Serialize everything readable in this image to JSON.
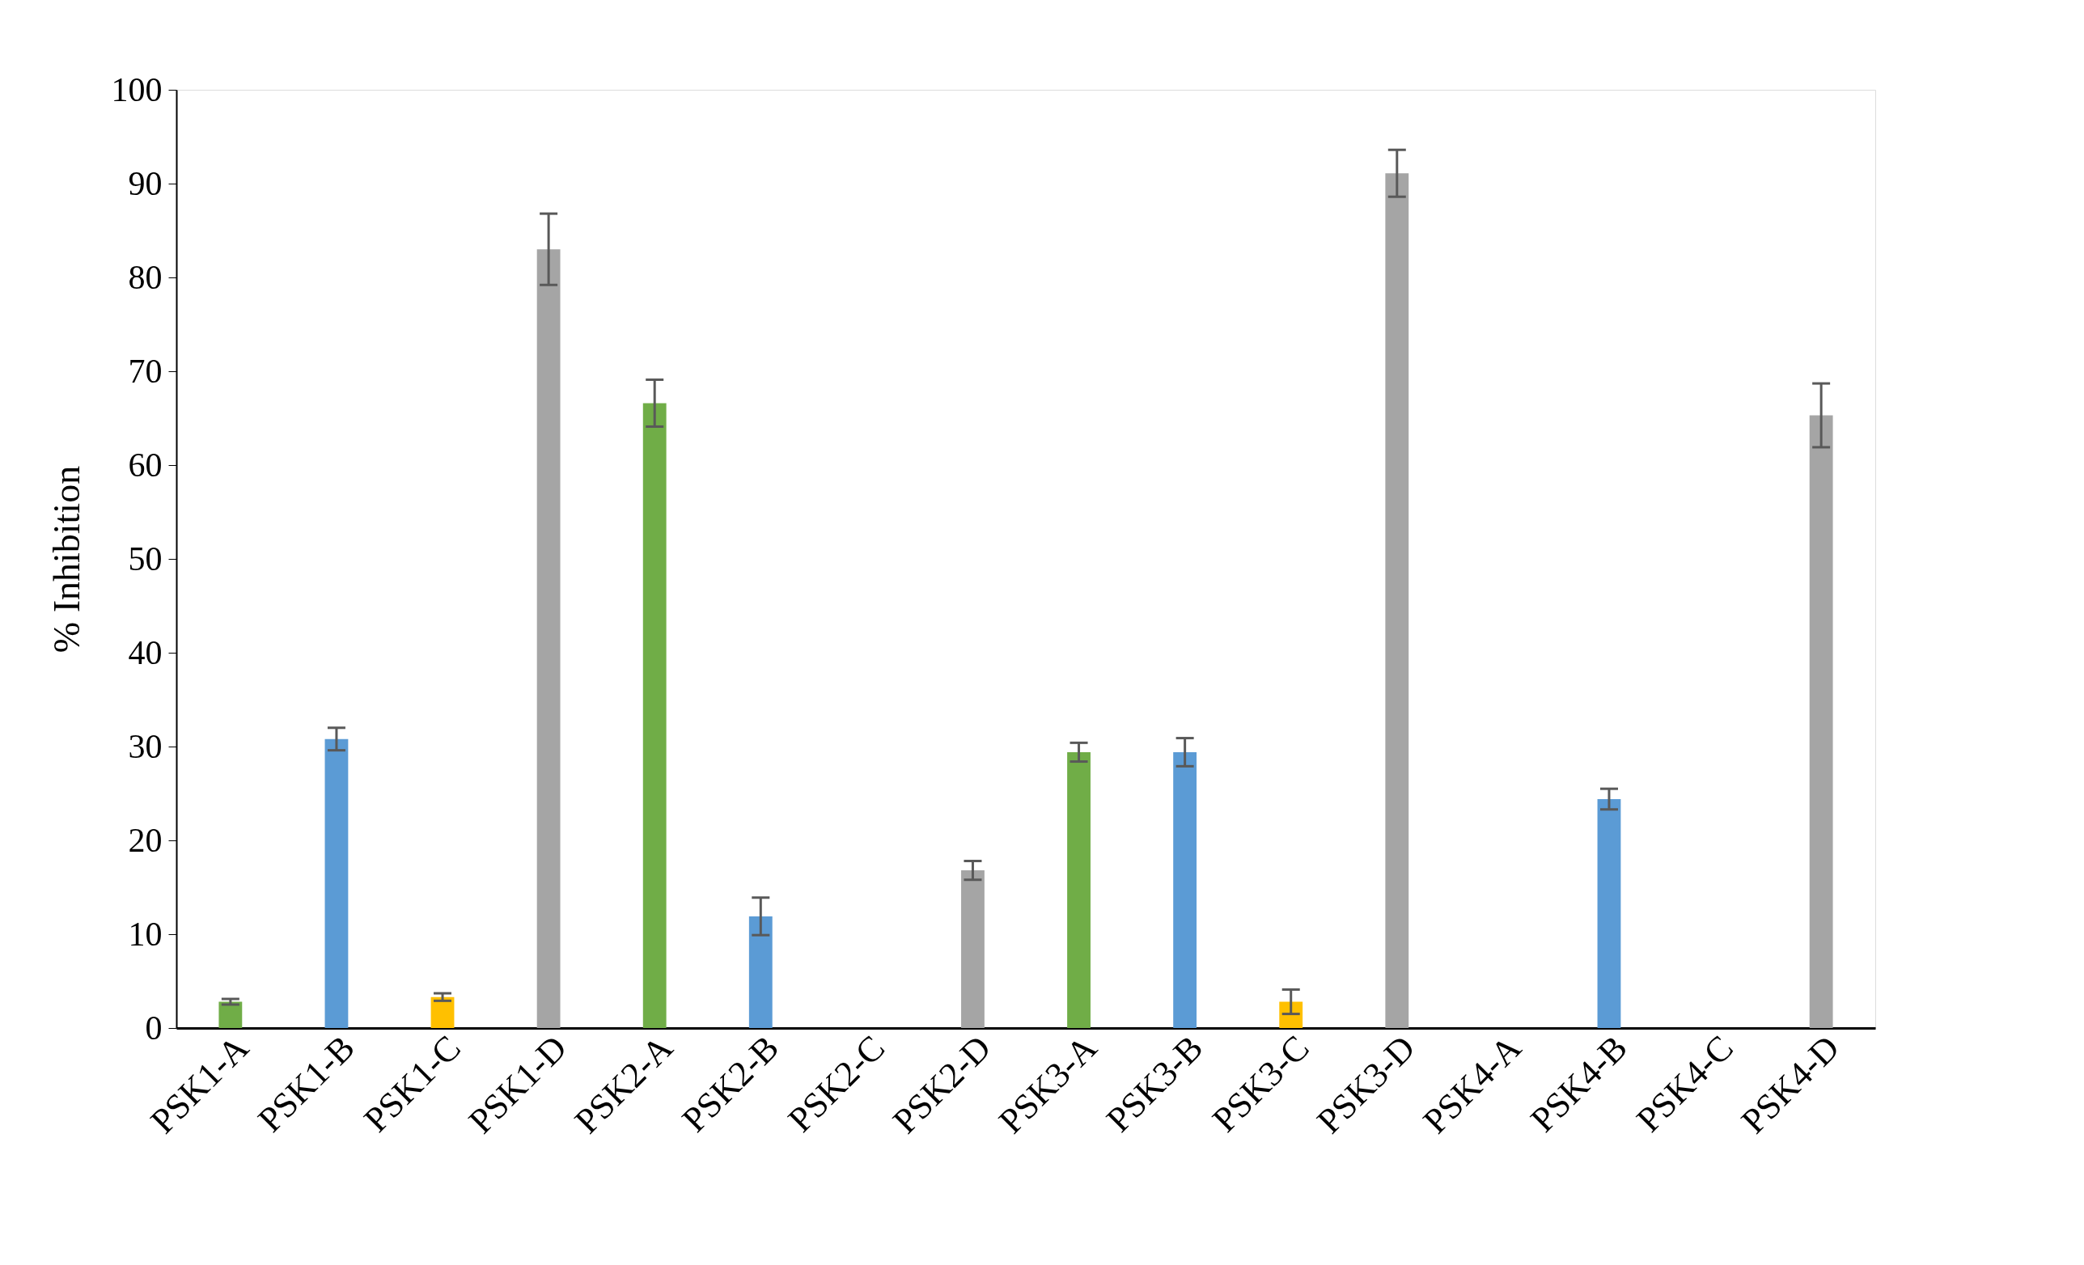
{
  "chart_data": {
    "type": "bar",
    "ylabel": "% Inhibition",
    "categories": [
      "PSK1-A",
      "PSK1-B",
      "PSK1-C",
      "PSK1-D",
      "PSK2-A",
      "PSK2-B",
      "PSK2-C",
      "PSK2-D",
      "PSK3-A",
      "PSK3-B",
      "PSK3-C",
      "PSK3-D",
      "PSK4-A",
      "PSK4-B",
      "PSK4-C",
      "PSK4-D"
    ],
    "values": [
      2.8,
      30.8,
      3.3,
      83,
      66.6,
      11.9,
      0,
      16.8,
      29.4,
      29.4,
      2.8,
      91.1,
      0,
      24.4,
      0,
      65.3
    ],
    "colors": [
      "#70ad47",
      "#5b9bd5",
      "#ffc000",
      "#a5a5a5",
      "#70ad47",
      "#5b9bd5",
      "#ffc000",
      "#a5a5a5",
      "#70ad47",
      "#5b9bd5",
      "#ffc000",
      "#a5a5a5",
      "#70ad47",
      "#5b9bd5",
      "#ffc000",
      "#a5a5a5"
    ],
    "errors": [
      0.3,
      1.2,
      0.4,
      3.8,
      2.5,
      2,
      null,
      1,
      1,
      1.5,
      1.3,
      2.5,
      null,
      1.1,
      null,
      3.4
    ],
    "ylim": [
      0,
      100
    ],
    "yticks": [
      0,
      10,
      20,
      30,
      40,
      50,
      60,
      70,
      80,
      90,
      100
    ],
    "grid": false
  }
}
